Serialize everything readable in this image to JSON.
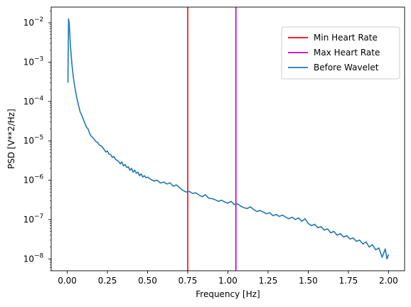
{
  "chart_data": {
    "type": "line",
    "xlabel": "Frequency [Hz]",
    "ylabel": "PSD [V**2/Hz]",
    "xlim": [
      -0.1,
      2.1
    ],
    "ylim": [
      5e-09,
      0.025
    ],
    "yscale": "log",
    "grid": false,
    "legend_position": "top-right",
    "xticks": [
      "0.00",
      "0.25",
      "0.50",
      "0.75",
      "1.00",
      "1.25",
      "1.50",
      "1.75",
      "2.00"
    ],
    "yticks": [
      {
        "base": "10",
        "exp": "−8",
        "value": 1e-08
      },
      {
        "base": "10",
        "exp": "−7",
        "value": 1e-07
      },
      {
        "base": "10",
        "exp": "−6",
        "value": 1e-06
      },
      {
        "base": "10",
        "exp": "−5",
        "value": 1e-05
      },
      {
        "base": "10",
        "exp": "−4",
        "value": 0.0001
      },
      {
        "base": "10",
        "exp": "−3",
        "value": 0.001
      },
      {
        "base": "10",
        "exp": "−2",
        "value": 0.01
      }
    ],
    "vlines": [
      {
        "name": "Min Heart Rate",
        "x": 0.75,
        "color": "#ff0000"
      },
      {
        "name": "Max Heart Rate",
        "x": 1.05,
        "color": "#bf00bf"
      }
    ],
    "series": [
      {
        "name": "Before Wavelet",
        "color": "#1f77b4",
        "points": [
          [
            0.004,
            0.0003
          ],
          [
            0.008,
            0.0125
          ],
          [
            0.012,
            0.01
          ],
          [
            0.02,
            0.0025
          ],
          [
            0.03,
            0.0008
          ],
          [
            0.04,
            0.00035
          ],
          [
            0.05,
            0.0002
          ],
          [
            0.06,
            0.00012
          ],
          [
            0.07,
            8e-05
          ],
          [
            0.08,
            5.5e-05
          ],
          [
            0.09,
            4.5e-05
          ],
          [
            0.1,
            3.5e-05
          ],
          [
            0.11,
            2.8e-05
          ],
          [
            0.12,
            2.2e-05
          ],
          [
            0.13,
            2e-05
          ],
          [
            0.14,
            1.5e-05
          ],
          [
            0.15,
            1.3e-05
          ],
          [
            0.16,
            1.2e-05
          ],
          [
            0.17,
            1.05e-05
          ],
          [
            0.18,
            9.5e-06
          ],
          [
            0.19,
            9e-06
          ],
          [
            0.2,
            7.8e-06
          ],
          [
            0.21,
            7.5e-06
          ],
          [
            0.22,
            6.8e-06
          ],
          [
            0.23,
            6e-06
          ],
          [
            0.24,
            5.2e-06
          ],
          [
            0.25,
            5.5e-06
          ],
          [
            0.26,
            4.6e-06
          ],
          [
            0.27,
            4.5e-06
          ],
          [
            0.28,
            3.8e-06
          ],
          [
            0.29,
            4e-06
          ],
          [
            0.3,
            3.4e-06
          ],
          [
            0.31,
            3.2e-06
          ],
          [
            0.32,
            3e-06
          ],
          [
            0.33,
            2.6e-06
          ],
          [
            0.34,
            2.9e-06
          ],
          [
            0.35,
            2.3e-06
          ],
          [
            0.36,
            2.5e-06
          ],
          [
            0.37,
            2.1e-06
          ],
          [
            0.38,
            2.2e-06
          ],
          [
            0.39,
            1.8e-06
          ],
          [
            0.4,
            2e-06
          ],
          [
            0.41,
            1.6e-06
          ],
          [
            0.42,
            1.8e-06
          ],
          [
            0.43,
            1.5e-06
          ],
          [
            0.44,
            1.6e-06
          ],
          [
            0.45,
            1.3e-06
          ],
          [
            0.46,
            1.45e-06
          ],
          [
            0.47,
            1.2e-06
          ],
          [
            0.48,
            1.3e-06
          ],
          [
            0.49,
            1.15e-06
          ],
          [
            0.5,
            1.2e-06
          ],
          [
            0.52,
            1.05e-06
          ],
          [
            0.54,
            9.5e-07
          ],
          [
            0.56,
            1e-06
          ],
          [
            0.58,
            8.5e-07
          ],
          [
            0.6,
            9e-07
          ],
          [
            0.62,
            8e-07
          ],
          [
            0.64,
            8.6e-07
          ],
          [
            0.66,
            7e-07
          ],
          [
            0.68,
            7.6e-07
          ],
          [
            0.7,
            6.4e-07
          ],
          [
            0.72,
            5.5e-07
          ],
          [
            0.74,
            5e-07
          ],
          [
            0.76,
            5.2e-07
          ],
          [
            0.78,
            4.6e-07
          ],
          [
            0.8,
            4.8e-07
          ],
          [
            0.82,
            4.2e-07
          ],
          [
            0.84,
            3.8e-07
          ],
          [
            0.86,
            4.3e-07
          ],
          [
            0.88,
            3.5e-07
          ],
          [
            0.9,
            3.4e-07
          ],
          [
            0.92,
            3.2e-07
          ],
          [
            0.94,
            2.9e-07
          ],
          [
            0.96,
            3.1e-07
          ],
          [
            0.98,
            2.8e-07
          ],
          [
            1.0,
            2.6e-07
          ],
          [
            1.02,
            2.9e-07
          ],
          [
            1.04,
            2.4e-07
          ],
          [
            1.06,
            2.5e-07
          ],
          [
            1.08,
            2.2e-07
          ],
          [
            1.1,
            2e-07
          ],
          [
            1.12,
            1.9e-07
          ],
          [
            1.14,
            2.1e-07
          ],
          [
            1.16,
            1.8e-07
          ],
          [
            1.18,
            1.6e-07
          ],
          [
            1.2,
            1.7e-07
          ],
          [
            1.22,
            1.55e-07
          ],
          [
            1.24,
            1.4e-07
          ],
          [
            1.26,
            1.5e-07
          ],
          [
            1.28,
            1.25e-07
          ],
          [
            1.3,
            1.35e-07
          ],
          [
            1.32,
            1.2e-07
          ],
          [
            1.34,
            1.3e-07
          ],
          [
            1.36,
            1.15e-07
          ],
          [
            1.38,
            1.05e-07
          ],
          [
            1.4,
            1.15e-07
          ],
          [
            1.42,
            1e-07
          ],
          [
            1.44,
            1.1e-07
          ],
          [
            1.46,
            9e-08
          ],
          [
            1.48,
            1.05e-07
          ],
          [
            1.5,
            8e-08
          ],
          [
            1.52,
            7e-08
          ],
          [
            1.54,
            7.6e-08
          ],
          [
            1.56,
            6.2e-08
          ],
          [
            1.58,
            6.6e-08
          ],
          [
            1.6,
            5.4e-08
          ],
          [
            1.62,
            5.8e-08
          ],
          [
            1.64,
            4.6e-08
          ],
          [
            1.66,
            5e-08
          ],
          [
            1.68,
            4e-08
          ],
          [
            1.7,
            4.4e-08
          ],
          [
            1.72,
            3.6e-08
          ],
          [
            1.74,
            3.9e-08
          ],
          [
            1.76,
            3.2e-08
          ],
          [
            1.78,
            3.4e-08
          ],
          [
            1.8,
            2.8e-08
          ],
          [
            1.82,
            3e-08
          ],
          [
            1.84,
            2.4e-08
          ],
          [
            1.86,
            2.7e-08
          ],
          [
            1.88,
            2e-08
          ],
          [
            1.9,
            2.3e-08
          ],
          [
            1.92,
            1.7e-08
          ],
          [
            1.94,
            1.9e-08
          ],
          [
            1.96,
            1.1e-08
          ],
          [
            1.98,
            1.8e-08
          ],
          [
            1.99,
            1e-08
          ],
          [
            2.0,
            1.3e-08
          ]
        ]
      }
    ]
  }
}
